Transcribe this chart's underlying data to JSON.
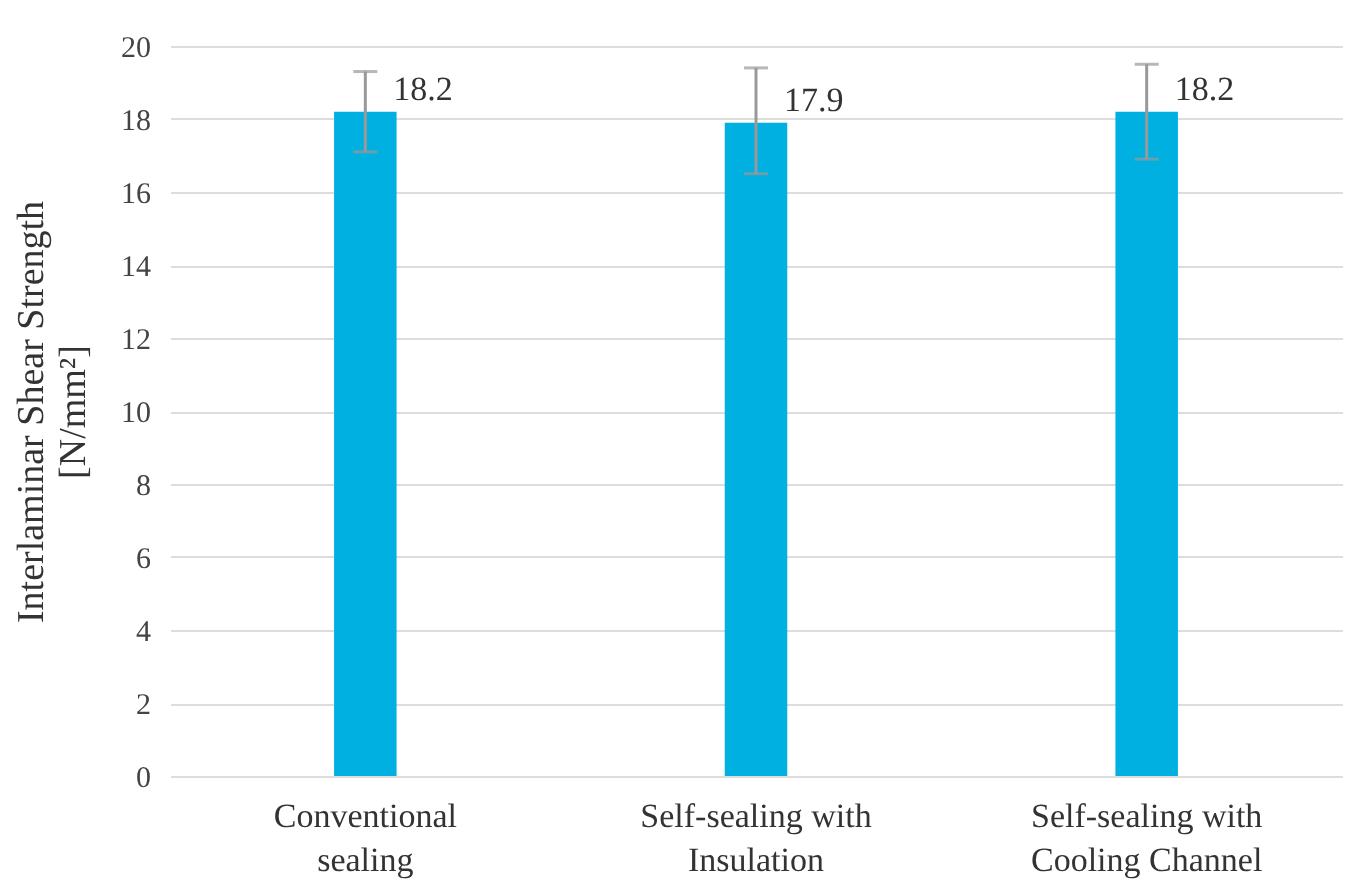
{
  "chart_data": {
    "type": "bar",
    "ylabel": "Interlaminar Shear Strength [N/mm²]",
    "categories": [
      "Conventional sealing",
      "Self-sealing with Insulation",
      "Self-sealing with Cooling Channel"
    ],
    "values": [
      18.2,
      17.9,
      18.2
    ],
    "errors": [
      [
        17.1,
        19.3
      ],
      [
        16.5,
        19.4
      ],
      [
        16.9,
        19.5
      ]
    ],
    "color": "#00b0e0",
    "ylim": [
      0,
      20
    ],
    "yticks": [
      0,
      2,
      4,
      6,
      8,
      10,
      12,
      14,
      16,
      18,
      20
    ],
    "grid": "y",
    "data_labels": true
  }
}
